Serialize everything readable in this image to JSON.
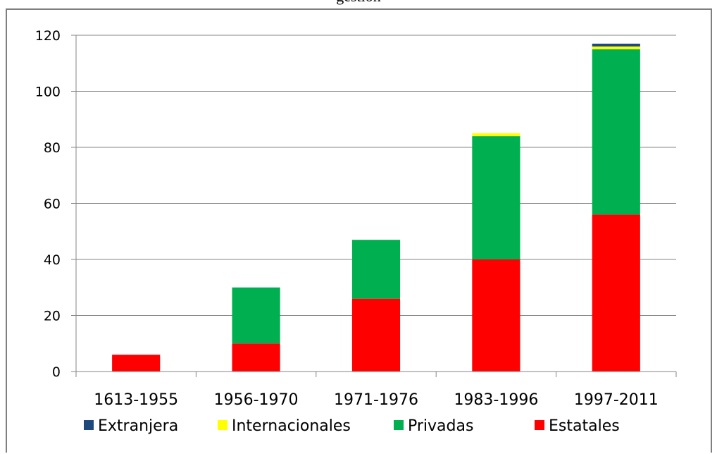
{
  "chart_data": {
    "type": "bar",
    "stacked": true,
    "title": "gestión",
    "categories": [
      "1613-1955",
      "1956-1970",
      "1971-1976",
      "1983-1996",
      "1997-2011"
    ],
    "series": [
      {
        "name": "Estatales",
        "color": "#ff0000",
        "values": [
          6,
          10,
          26,
          40,
          56
        ]
      },
      {
        "name": "Privadas",
        "color": "#00b050",
        "values": [
          0,
          20,
          21,
          44,
          59
        ]
      },
      {
        "name": "Internacionales",
        "color": "#ffff00",
        "values": [
          0,
          0,
          0,
          1,
          1
        ]
      },
      {
        "name": "Extranjera",
        "color": "#1f497d",
        "values": [
          0,
          0,
          0,
          0,
          1
        ]
      }
    ],
    "legend_order": [
      "Extranjera",
      "Internacionales",
      "Privadas",
      "Estatales"
    ],
    "ylim": [
      0,
      120
    ],
    "yticks": [
      "0",
      "20",
      "40",
      "60",
      "80",
      "100",
      "120"
    ],
    "grid": true,
    "legend_position": "bottom"
  }
}
